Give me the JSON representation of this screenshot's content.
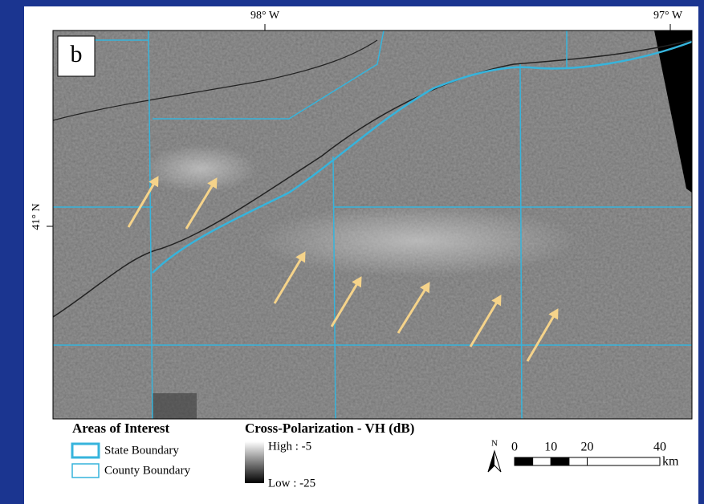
{
  "panel_label": "b",
  "longitude_labels": [
    "98° W",
    "97° W"
  ],
  "latitude_labels": [
    "41° N"
  ],
  "legend": {
    "title": "Areas of Interest",
    "items": [
      "State Boundary",
      "County Boundary"
    ]
  },
  "colorbar": {
    "title": "Cross-Polarization - VH (dB)",
    "high": "High : -5",
    "low": "Low : -25"
  },
  "north": "N",
  "scale_bar": {
    "ticks": [
      0,
      10,
      20,
      40
    ],
    "unit": "km"
  }
}
